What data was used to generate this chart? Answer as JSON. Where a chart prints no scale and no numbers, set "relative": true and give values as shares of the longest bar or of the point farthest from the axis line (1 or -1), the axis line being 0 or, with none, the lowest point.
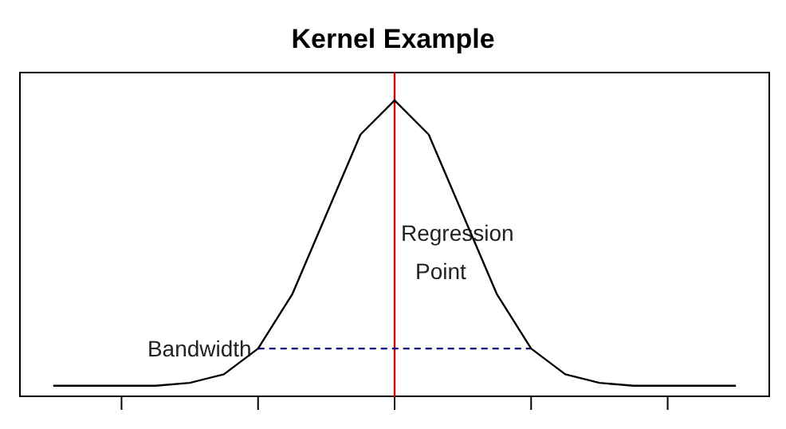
{
  "chart_data": {
    "type": "line",
    "title": "Kernel Example",
    "relative": true,
    "categories": [
      null,
      null,
      null,
      null,
      null,
      null,
      null,
      null,
      null,
      null,
      null,
      null,
      null,
      null,
      null,
      null,
      null,
      null,
      null,
      null,
      null
    ],
    "series": [
      {
        "color": "#000000",
        "values": [
          0,
          0,
          0,
          0,
          0.01,
          0.04,
          0.13,
          0.32,
          0.6,
          0.88,
          1,
          0.88,
          0.6,
          0.32,
          0.13,
          0.04,
          0.01,
          0,
          0,
          0,
          0
        ]
      }
    ],
    "marker": "none",
    "grid": false,
    "line_style": "solid",
    "ref_lines": [
      {
        "axis": "x",
        "label": "Regression Point",
        "color": "#cc0000"
      },
      {
        "axis": "y",
        "value": 0.13,
        "color": "#000080",
        "line_style": "dashed"
      }
    ],
    "annotations": [
      "Bandwidth"
    ]
  }
}
